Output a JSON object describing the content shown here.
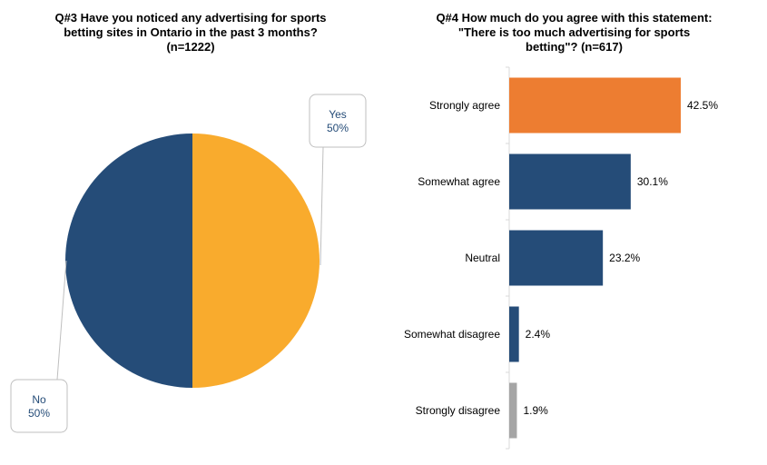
{
  "chart_data": [
    {
      "type": "pie",
      "title": "Q#3 Have you noticed any advertising for sports\nbetting sites in Ontario in the past 3 months?\n(n=1222)",
      "slices": [
        {
          "label": "Yes",
          "value": 50,
          "value_label": "50%",
          "color": "#F9AB2D"
        },
        {
          "label": "No",
          "value": 50,
          "value_label": "50%",
          "color": "#254C78"
        }
      ]
    },
    {
      "type": "bar",
      "orientation": "horizontal",
      "title": "Q#4 How much do you agree with this statement:\n\"There is too much advertising for sports\nbetting\"? (n=617)",
      "categories": [
        "Strongly agree",
        "Somewhat agree",
        "Neutral",
        "Somewhat disagree",
        "Strongly disagree"
      ],
      "values": [
        42.5,
        30.1,
        23.2,
        2.4,
        1.9
      ],
      "value_labels": [
        "42.5%",
        "30.1%",
        "23.2%",
        "2.4%",
        "1.9%"
      ],
      "colors": [
        "#ED7D31",
        "#254C78",
        "#254C78",
        "#254C78",
        "#A5A5A5"
      ],
      "xlim": [
        0,
        50
      ],
      "grid": false
    }
  ]
}
